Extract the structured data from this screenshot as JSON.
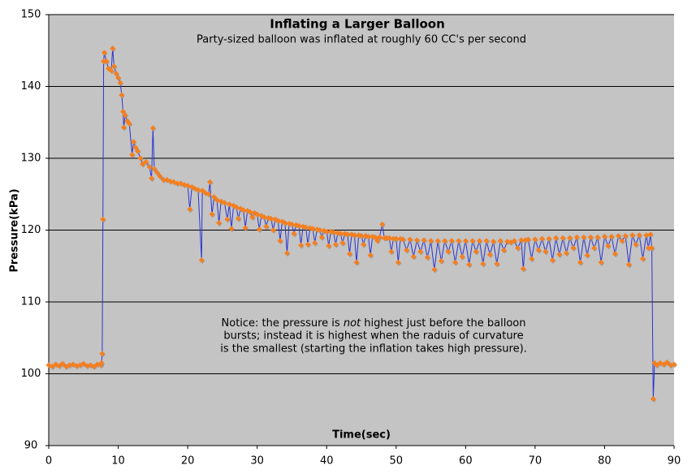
{
  "chart_data": {
    "type": "line",
    "title": "Inflating a Larger Balloon",
    "subtitle": "Party-sized balloon was inflated at roughly 60 CC's per second",
    "x_label": "Time(sec)",
    "y_label": "Pressure(kPa)",
    "annotation": {
      "line1": [
        "Notice: the pressure is ",
        "not",
        " highest just before the balloon"
      ],
      "line2": "bursts; instead it is highest when the raduis of curvature",
      "line3": "is the smallest (starting the inflation takes high pressure)."
    },
    "xlim": [
      0,
      90
    ],
    "xticks": [
      0,
      10,
      20,
      30,
      40,
      50,
      60,
      70,
      80,
      90
    ],
    "ylim": [
      90,
      150
    ],
    "yticks": [
      90,
      100,
      110,
      120,
      130,
      140,
      150
    ],
    "grid": true,
    "background": "#c4c4c4",
    "line_color": "#2a35d0",
    "marker_color": "#f47f20",
    "x": [
      0,
      0.5,
      1,
      1.5,
      2,
      2.5,
      3,
      3.5,
      4,
      4.5,
      5,
      5.5,
      6,
      6.5,
      7,
      7.5,
      7.6,
      7.7,
      7.8,
      7.9,
      8.0,
      8.3,
      8.6,
      9.0,
      9.2,
      9.4,
      9.7,
      10.0,
      10.3,
      10.5,
      10.7,
      10.8,
      11.0,
      11.3,
      11.6,
      12.0,
      12.2,
      12.5,
      12.8,
      13.2,
      13.5,
      14.0,
      14.5,
      14.8,
      15.0,
      15.2,
      15.6,
      16.0,
      16.5,
      17.0,
      17.5,
      18.0,
      18.5,
      19.0,
      19.5,
      20.0,
      20.3,
      20.6,
      21.0,
      21.5,
      22.0,
      22.1,
      22.5,
      23.0,
      23.2,
      23.5,
      23.8,
      24.2,
      24.5,
      24.8,
      25.3,
      25.7,
      26.0,
      26.3,
      26.6,
      27.0,
      27.3,
      27.6,
      28.0,
      28.3,
      28.6,
      29.0,
      29.3,
      29.6,
      30.0,
      30.3,
      30.6,
      31.0,
      31.3,
      31.6,
      32.0,
      32.3,
      32.6,
      33.0,
      33.3,
      33.6,
      34.0,
      34.3,
      34.6,
      35.0,
      35.3,
      35.6,
      36.0,
      36.3,
      36.6,
      37.0,
      37.3,
      37.6,
      38.0,
      38.3,
      38.6,
      39.0,
      39.3,
      39.6,
      40.0,
      40.3,
      40.6,
      41.0,
      41.3,
      41.6,
      42.0,
      42.3,
      42.6,
      43.0,
      43.3,
      43.6,
      44.0,
      44.3,
      44.6,
      45.0,
      45.3,
      45.6,
      46.0,
      46.3,
      46.6,
      47.0,
      47.3,
      47.6,
      48.0,
      48.3,
      48.6,
      49.0,
      49.3,
      49.6,
      50.0,
      50.3,
      50.6,
      51.0,
      51.5,
      52.0,
      52.5,
      53.0,
      53.5,
      54.0,
      54.5,
      55.0,
      55.5,
      56.0,
      56.5,
      57.0,
      57.5,
      58.0,
      58.5,
      59.0,
      59.5,
      60.0,
      60.5,
      61.0,
      61.5,
      62.0,
      62.5,
      63.0,
      63.5,
      64.0,
      64.5,
      65.0,
      65.5,
      66.0,
      66.5,
      67.0,
      67.5,
      68.0,
      68.3,
      68.6,
      69.0,
      69.5,
      70.0,
      70.5,
      71.0,
      71.5,
      72.0,
      72.5,
      73.0,
      73.5,
      74.0,
      74.5,
      75.0,
      75.5,
      76.0,
      76.5,
      77.0,
      77.5,
      78.0,
      78.5,
      79.0,
      79.5,
      80.0,
      80.5,
      81.0,
      81.5,
      82.0,
      82.5,
      83.0,
      83.5,
      84.0,
      84.5,
      85.0,
      85.5,
      86.0,
      86.3,
      86.6,
      86.8,
      87.0,
      87.2,
      87.5,
      88.0,
      88.5,
      89.0,
      89.5,
      90.0
    ],
    "values": [
      101.2,
      101.0,
      101.3,
      101.1,
      101.4,
      101.0,
      101.2,
      101.3,
      101.1,
      101.2,
      101.4,
      101.1,
      101.2,
      101.0,
      101.3,
      101.2,
      101.5,
      102.8,
      121.5,
      143.5,
      144.7,
      143.5,
      142.5,
      142.2,
      145.3,
      142.8,
      141.8,
      141.2,
      140.5,
      138.8,
      136.5,
      134.3,
      136.0,
      135.2,
      134.8,
      130.5,
      132.3,
      131.5,
      131.0,
      130.0,
      129.2,
      129.5,
      128.8,
      127.2,
      134.2,
      128.5,
      128.0,
      127.5,
      127.0,
      127.0,
      126.8,
      126.7,
      126.5,
      126.5,
      126.3,
      126.2,
      122.9,
      126.0,
      125.8,
      125.6,
      115.8,
      125.5,
      125.2,
      125.0,
      126.7,
      122.2,
      124.6,
      124.2,
      121.0,
      124.0,
      123.8,
      121.5,
      123.6,
      120.2,
      123.4,
      123.2,
      121.6,
      123.0,
      122.8,
      120.3,
      122.7,
      122.5,
      121.8,
      122.4,
      122.2,
      120.1,
      122.0,
      121.8,
      120.5,
      121.7,
      121.6,
      120.0,
      121.5,
      121.3,
      118.5,
      121.2,
      121.0,
      116.8,
      120.9,
      120.8,
      119.5,
      120.7,
      120.6,
      117.9,
      120.5,
      120.4,
      118.0,
      120.3,
      120.2,
      118.2,
      120.1,
      120.0,
      119.0,
      119.9,
      119.8,
      117.8,
      119.8,
      119.7,
      118.0,
      119.6,
      119.5,
      118.2,
      119.5,
      119.4,
      116.7,
      119.4,
      119.3,
      115.5,
      119.3,
      119.2,
      118.0,
      119.2,
      119.1,
      116.5,
      119.1,
      119.0,
      118.5,
      119.0,
      120.8,
      118.9,
      118.9,
      118.9,
      117.0,
      118.8,
      118.8,
      115.5,
      118.8,
      118.7,
      117.2,
      118.7,
      116.3,
      118.6,
      117.0,
      118.6,
      116.2,
      118.5,
      114.5,
      118.5,
      115.7,
      118.5,
      117.0,
      118.5,
      115.5,
      118.5,
      116.3,
      118.5,
      115.2,
      118.5,
      117.0,
      118.5,
      115.3,
      118.5,
      116.6,
      118.4,
      115.3,
      118.5,
      117.2,
      118.4,
      118.3,
      118.5,
      117.5,
      118.6,
      114.6,
      118.6,
      118.7,
      116.0,
      118.7,
      117.2,
      118.8,
      117.0,
      118.8,
      115.8,
      118.9,
      116.6,
      118.9,
      116.8,
      118.9,
      117.5,
      119.0,
      115.5,
      119.0,
      116.5,
      119.0,
      117.5,
      119.0,
      115.5,
      119.1,
      117.8,
      119.1,
      116.7,
      119.2,
      118.5,
      119.2,
      115.2,
      119.3,
      118.0,
      119.3,
      116.0,
      119.3,
      117.5,
      119.4,
      117.5,
      96.5,
      101.5,
      101.2,
      101.5,
      101.3,
      101.6,
      101.2,
      101.3
    ]
  }
}
